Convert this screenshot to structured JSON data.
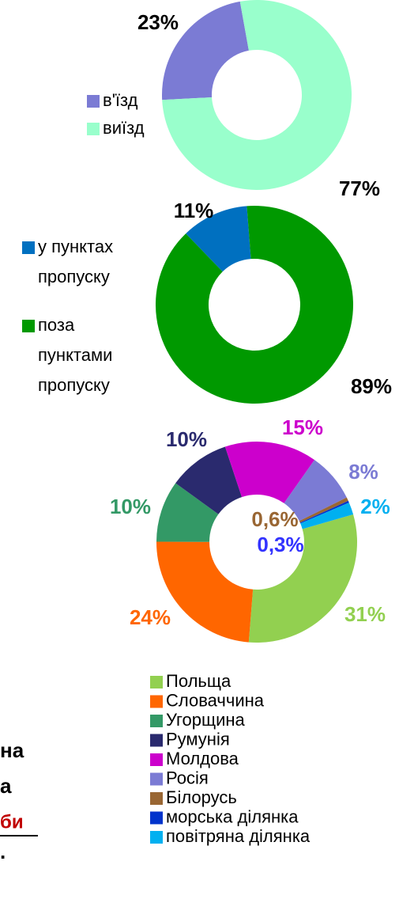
{
  "chart_data": [
    {
      "type": "donut",
      "categories": [
        "в'їзд",
        "виїзд"
      ],
      "values": [
        23,
        77
      ],
      "value_labels": [
        "23%",
        "77%"
      ],
      "colors": [
        "#7b7bd4",
        "#99ffcc"
      ],
      "label_colors": [
        "#000000",
        "#000000"
      ]
    },
    {
      "type": "donut",
      "categories": [
        "у пунктах\nпропуску",
        "поза\nпунктами\nпропуску"
      ],
      "values": [
        11,
        89
      ],
      "value_labels": [
        "11%",
        "89%"
      ],
      "colors": [
        "#0070c0",
        "#009900"
      ],
      "label_colors": [
        "#000000",
        "#000000"
      ]
    },
    {
      "type": "donut",
      "categories": [
        "Польща",
        "Словаччина",
        "Угорщина",
        "Румунія",
        "Молдова",
        "Росія",
        "Білорусь",
        "морська ділянка",
        "повітряна ділянка"
      ],
      "values": [
        31,
        24,
        10,
        10,
        15,
        8,
        0.6,
        0.3,
        2
      ],
      "value_labels": [
        "31%",
        "24%",
        "10%",
        "10%",
        "15%",
        "8%",
        "0,6%",
        "0,3%",
        "2%"
      ],
      "colors": [
        "#92d050",
        "#ff6600",
        "#339966",
        "#2a2a6e",
        "#cc00cc",
        "#7b7bd4",
        "#996633",
        "#0033cc",
        "#00b0f0"
      ],
      "label_colors": [
        "#92d050",
        "#ff6600",
        "#339966",
        "#2a2a6e",
        "#cc00cc",
        "#7b7bd4",
        "#996633",
        "#3333ff",
        "#00b0f0"
      ]
    }
  ],
  "fragments": [
    "на",
    "а",
    "би",
    "."
  ]
}
